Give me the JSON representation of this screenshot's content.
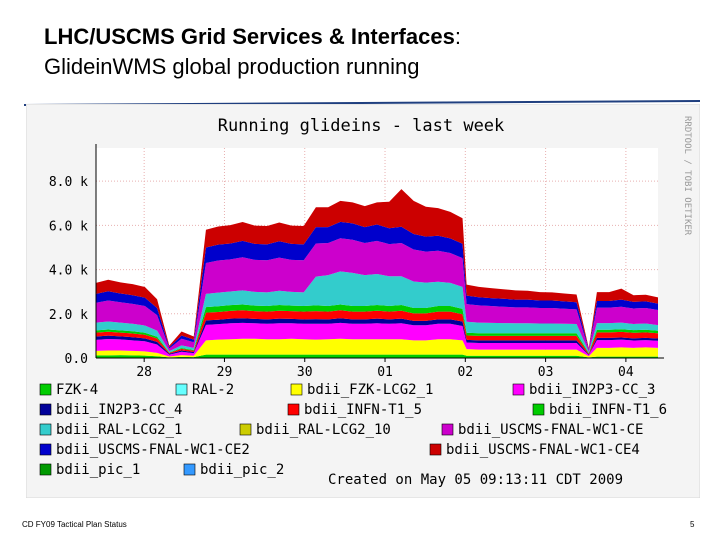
{
  "slide": {
    "title_bold": "LHC/USCMS Grid Services & Interfaces",
    "title_colon": ":",
    "subtitle": "GlideinWMS global production running",
    "footer_left": "CD FY09 Tactical Plan Status",
    "page_number": "5"
  },
  "chart_data": {
    "type": "area",
    "stacked": true,
    "title": "Running glideins - last week",
    "watermark": "RRDTOOL / TOBI OETIKER",
    "created": "Created on May 05 09:13:11 CDT 2009",
    "y_ticks": [
      "0.0",
      "2.0 k",
      "4.0 k",
      "6.0 k",
      "8.0 k"
    ],
    "ylim": [
      0,
      9500
    ],
    "x_ticks": [
      "28",
      "29",
      "30",
      "01",
      "02",
      "03",
      "04"
    ],
    "grid": true,
    "legend_position": "bottom",
    "x": [
      0.0,
      0.15,
      0.3,
      0.45,
      0.6,
      0.75,
      0.9,
      1.05,
      1.2,
      1.35,
      1.5,
      1.65,
      1.8,
      1.95,
      2.1,
      2.25,
      2.4,
      2.55,
      2.7,
      2.85,
      3.0,
      3.15,
      3.3,
      3.45,
      3.6,
      3.75,
      3.9,
      4.05,
      4.2,
      4.35,
      4.5,
      4.55,
      4.7,
      4.85,
      5.0,
      5.15,
      5.3,
      5.45,
      5.6,
      5.75,
      5.9,
      6.05,
      6.15,
      6.3,
      6.45,
      6.6,
      6.75,
      6.9
    ],
    "series": [
      {
        "name": "FZK-4",
        "color": "#00cc00",
        "values": [
          120,
          120,
          130,
          120,
          110,
          80,
          30,
          50,
          40,
          150,
          150,
          150,
          150,
          150,
          150,
          150,
          150,
          150,
          150,
          150,
          150,
          150,
          150,
          150,
          150,
          150,
          150,
          150,
          150,
          150,
          150,
          100,
          100,
          100,
          100,
          100,
          100,
          100,
          100,
          100,
          100,
          30,
          60,
          60,
          60,
          60,
          60,
          60
        ]
      },
      {
        "name": "RAL-2",
        "color": "#66ffff",
        "values": [
          0,
          0,
          0,
          0,
          0,
          0,
          0,
          0,
          0,
          0,
          0,
          0,
          0,
          0,
          0,
          0,
          0,
          0,
          0,
          0,
          0,
          0,
          0,
          0,
          0,
          0,
          0,
          0,
          0,
          0,
          0,
          0,
          0,
          0,
          0,
          0,
          0,
          0,
          0,
          0,
          0,
          0,
          0,
          0,
          0,
          0,
          0,
          0
        ]
      },
      {
        "name": "bdii_FZK-LCG2_1",
        "color": "#ffff00",
        "values": [
          200,
          220,
          210,
          200,
          190,
          150,
          40,
          80,
          60,
          650,
          680,
          700,
          720,
          720,
          700,
          700,
          720,
          700,
          680,
          700,
          720,
          700,
          700,
          700,
          700,
          700,
          650,
          650,
          700,
          700,
          650,
          300,
          280,
          280,
          280,
          280,
          280,
          280,
          280,
          280,
          280,
          50,
          400,
          400,
          420,
          400,
          420,
          400
        ]
      },
      {
        "name": "bdii_IN2P3-CC_3",
        "color": "#ff00ff",
        "values": [
          500,
          520,
          500,
          480,
          460,
          380,
          80,
          150,
          120,
          700,
          700,
          720,
          720,
          700,
          700,
          720,
          700,
          700,
          720,
          700,
          720,
          700,
          700,
          720,
          700,
          720,
          680,
          680,
          700,
          700,
          650,
          300,
          300,
          300,
          300,
          300,
          300,
          300,
          300,
          300,
          300,
          50,
          350,
          350,
          350,
          330,
          330,
          320
        ]
      },
      {
        "name": "bdii_IN2P3-CC_4",
        "color": "#000099",
        "values": [
          150,
          150,
          140,
          140,
          130,
          120,
          40,
          60,
          50,
          200,
          200,
          210,
          210,
          200,
          200,
          210,
          200,
          200,
          210,
          200,
          210,
          200,
          200,
          210,
          200,
          210,
          200,
          200,
          200,
          200,
          200,
          120,
          120,
          120,
          120,
          120,
          120,
          120,
          120,
          120,
          120,
          30,
          100,
          100,
          100,
          100,
          100,
          100
        ]
      },
      {
        "name": "bdii_INFN-T1_5",
        "color": "#ff0000",
        "values": [
          180,
          180,
          170,
          170,
          160,
          150,
          40,
          70,
          60,
          350,
          350,
          350,
          360,
          350,
          350,
          360,
          350,
          350,
          360,
          350,
          360,
          350,
          350,
          360,
          350,
          360,
          340,
          340,
          350,
          350,
          330,
          200,
          200,
          200,
          200,
          200,
          200,
          200,
          200,
          200,
          200,
          40,
          250,
          250,
          250,
          250,
          250,
          240
        ]
      },
      {
        "name": "bdii_INFN-T1_6",
        "color": "#00cc00",
        "values": [
          100,
          100,
          100,
          100,
          90,
          80,
          20,
          40,
          30,
          250,
          260,
          260,
          260,
          250,
          250,
          260,
          250,
          250,
          260,
          250,
          260,
          250,
          250,
          260,
          250,
          260,
          240,
          240,
          250,
          250,
          240,
          120,
          120,
          120,
          120,
          120,
          120,
          120,
          120,
          120,
          120,
          20,
          120,
          120,
          120,
          120,
          120,
          110
        ]
      },
      {
        "name": "bdii_RAL-LCG2_1",
        "color": "#33cccc",
        "values": [
          350,
          360,
          350,
          340,
          330,
          280,
          60,
          120,
          100,
          600,
          620,
          620,
          640,
          620,
          620,
          640,
          620,
          620,
          1300,
          1400,
          1500,
          1500,
          1400,
          1400,
          1350,
          1300,
          1200,
          1150,
          1100,
          1050,
          1000,
          500,
          480,
          470,
          460,
          450,
          450,
          440,
          440,
          430,
          420,
          60,
          300,
          300,
          300,
          280,
          280,
          260
        ]
      },
      {
        "name": "bdii_RAL-LCG2_10",
        "color": "#cccc00",
        "values": [
          0,
          0,
          0,
          0,
          0,
          0,
          0,
          0,
          0,
          0,
          0,
          0,
          0,
          0,
          0,
          0,
          0,
          0,
          0,
          0,
          0,
          0,
          0,
          0,
          0,
          0,
          0,
          0,
          0,
          0,
          0,
          0,
          0,
          0,
          0,
          0,
          0,
          0,
          0,
          0,
          0,
          0,
          0,
          0,
          0,
          0,
          0,
          0
        ]
      },
      {
        "name": "bdii_USCMS-FNAL-WC1-CE",
        "color": "#cc00cc",
        "values": [
          900,
          950,
          920,
          900,
          880,
          700,
          120,
          300,
          250,
          1400,
          1450,
          1450,
          1500,
          1450,
          1450,
          1500,
          1450,
          1450,
          1500,
          1450,
          1500,
          1500,
          1450,
          1500,
          1450,
          1500,
          1450,
          1400,
          1400,
          1350,
          1300,
          800,
          780,
          760,
          740,
          720,
          720,
          700,
          700,
          680,
          660,
          80,
          700,
          700,
          720,
          700,
          700,
          680
        ]
      },
      {
        "name": "bdii_USCMS-FNAL-WC1-CE2",
        "color": "#0000cc",
        "values": [
          400,
          420,
          400,
          390,
          380,
          320,
          60,
          150,
          120,
          700,
          720,
          720,
          740,
          720,
          720,
          740,
          720,
          720,
          740,
          720,
          740,
          740,
          720,
          740,
          720,
          740,
          700,
          680,
          680,
          660,
          650,
          380,
          370,
          360,
          360,
          350,
          350,
          340,
          340,
          330,
          320,
          40,
          300,
          300,
          320,
          300,
          300,
          290
        ]
      },
      {
        "name": "bdii_USCMS-FNAL-WC1-CE4",
        "color": "#cc0000",
        "values": [
          500,
          520,
          500,
          500,
          480,
          400,
          70,
          180,
          140,
          800,
          820,
          830,
          850,
          830,
          830,
          850,
          830,
          830,
          900,
          900,
          950,
          950,
          950,
          1000,
          1200,
          1700,
          1500,
          1350,
          1250,
          1200,
          1150,
          500,
          470,
          450,
          430,
          420,
          400,
          380,
          370,
          360,
          350,
          50,
          400,
          400,
          500,
          300,
          300,
          280
        ]
      },
      {
        "name": "bdii_pic_1",
        "color": "#009900",
        "values": [
          0,
          0,
          0,
          0,
          0,
          0,
          0,
          0,
          0,
          0,
          0,
          0,
          0,
          0,
          0,
          0,
          0,
          0,
          0,
          0,
          0,
          0,
          0,
          0,
          0,
          0,
          0,
          0,
          0,
          0,
          0,
          0,
          0,
          0,
          0,
          0,
          0,
          0,
          0,
          0,
          0,
          0,
          0,
          0,
          0,
          0,
          0,
          0
        ]
      },
      {
        "name": "bdii_pic_2",
        "color": "#3399ff",
        "values": [
          0,
          0,
          0,
          0,
          0,
          0,
          0,
          0,
          0,
          0,
          0,
          0,
          0,
          0,
          0,
          0,
          0,
          0,
          0,
          0,
          0,
          0,
          0,
          0,
          0,
          0,
          0,
          0,
          0,
          0,
          0,
          0,
          0,
          0,
          0,
          0,
          0,
          0,
          0,
          0,
          0,
          0,
          0,
          0,
          0,
          0,
          0,
          0
        ]
      }
    ]
  }
}
